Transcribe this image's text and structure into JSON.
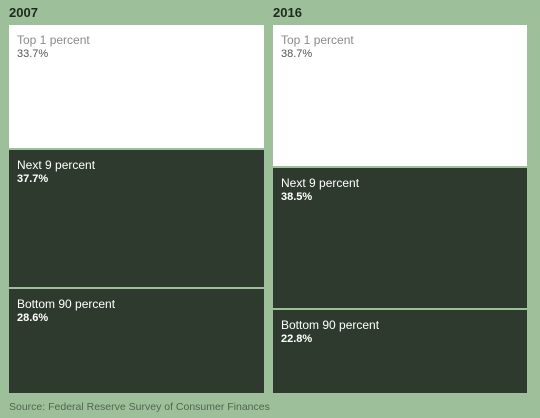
{
  "chart_data": {
    "type": "bar",
    "stacked": true,
    "percent": true,
    "categories": [
      "2007",
      "2016"
    ],
    "series": [
      {
        "name": "Top 1 percent",
        "label": "Top 1 percent",
        "values": [
          33.7,
          38.7
        ],
        "value_labels": [
          "33.7%",
          "38.7%"
        ],
        "color": "#ffffff"
      },
      {
        "name": "Next 9 percent",
        "label": "Next 9 percent",
        "values": [
          37.7,
          38.5
        ],
        "value_labels": [
          "37.7%",
          "38.5%"
        ],
        "color": "#2f3a2f"
      },
      {
        "name": "Bottom 90 percent",
        "label": "Bottom 90 percent",
        "values": [
          28.6,
          22.8
        ],
        "value_labels": [
          "28.6%",
          "22.8%"
        ],
        "color": "#2f3a2f"
      }
    ],
    "source": "Source: Federal Reserve Survey of Consumer Finances"
  }
}
